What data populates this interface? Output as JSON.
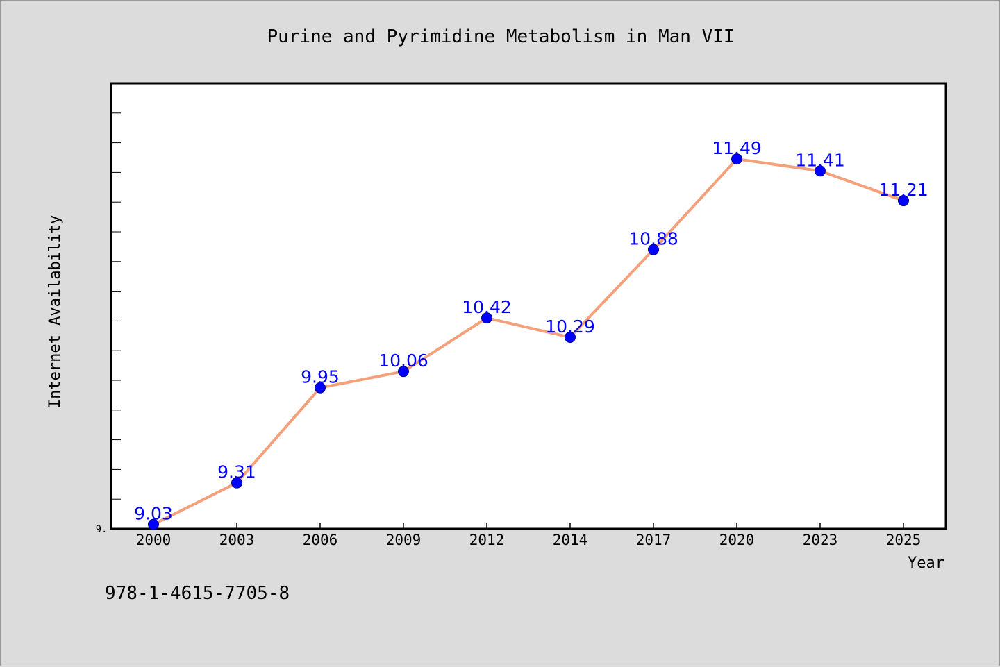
{
  "chart_data": {
    "type": "line",
    "title": "Purine and Pyrimidine Metabolism in Man VII",
    "xlabel": "Year",
    "ylabel": "Internet Availability",
    "categories": [
      "2000",
      "2003",
      "2006",
      "2009",
      "2012",
      "2014",
      "2017",
      "2020",
      "2023",
      "2025"
    ],
    "series": [
      {
        "values": [
          9.03,
          9.31,
          9.95,
          10.06,
          10.42,
          10.29,
          10.88,
          11.49,
          11.41,
          11.21
        ],
        "labels": [
          "9.03",
          "9.31",
          "9.95",
          "10.06",
          "10.42",
          "10.29",
          "10.88",
          "11.49",
          "11.41",
          "11.21"
        ],
        "line_color": "#f4a07a",
        "marker_color": "#0000ff"
      }
    ],
    "ylim": [
      9.0,
      12.0
    ],
    "y_tick_labels": [
      "9."
    ],
    "grid": false,
    "legend": "none"
  },
  "footnote": "978-1-4615-7705-8"
}
